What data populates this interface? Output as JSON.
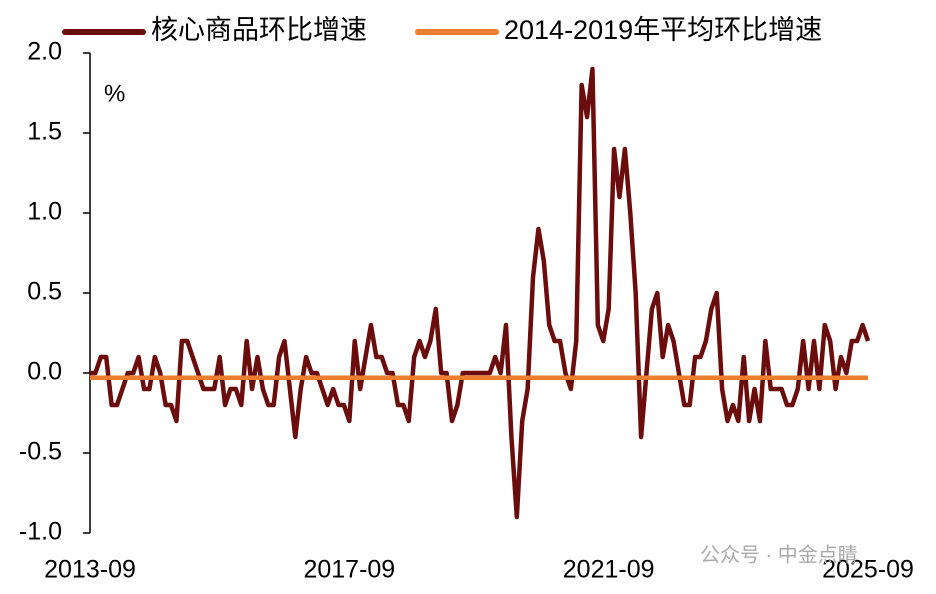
{
  "chart_data": {
    "type": "line",
    "categories": [
      "2013-09",
      null,
      null,
      null,
      null,
      null,
      null,
      null,
      null,
      null,
      null,
      null,
      null,
      null,
      null,
      null,
      null,
      null,
      null,
      null,
      null,
      null,
      null,
      null,
      null,
      null,
      null,
      null,
      null,
      null,
      null,
      null,
      null,
      null,
      null,
      null,
      null,
      null,
      null,
      null,
      null,
      null,
      null,
      null,
      null,
      null,
      null,
      null,
      "2017-09",
      null,
      null,
      null,
      null,
      null,
      null,
      null,
      null,
      null,
      null,
      null,
      null,
      null,
      null,
      null,
      null,
      null,
      null,
      null,
      null,
      null,
      null,
      null,
      null,
      null,
      null,
      null,
      null,
      null,
      null,
      null,
      null,
      null,
      null,
      null,
      null,
      null,
      null,
      null,
      null,
      null,
      null,
      null,
      null,
      null,
      null,
      null,
      "2021-09",
      null,
      null,
      null,
      null,
      null,
      null,
      null,
      null,
      null,
      null,
      null,
      null,
      null,
      null,
      null,
      null,
      null,
      null,
      null,
      null,
      null,
      null,
      null,
      null,
      null,
      null,
      null,
      null,
      null,
      null,
      null,
      null,
      null,
      null,
      null,
      null,
      null,
      null,
      null,
      null,
      null,
      null,
      null,
      null,
      null,
      null,
      null,
      "2025-09"
    ],
    "series": [
      {
        "name": "核心商品环比增速",
        "color": "#6b0d0d",
        "values": [
          0,
          0,
          0.1,
          0.1,
          -0.2,
          -0.2,
          -0.1,
          0,
          0,
          0.1,
          -0.1,
          -0.1,
          0.1,
          0,
          -0.2,
          -0.2,
          -0.3,
          0.2,
          0.2,
          0.1,
          0,
          -0.1,
          -0.1,
          -0.1,
          0.1,
          -0.2,
          -0.1,
          -0.1,
          -0.2,
          0.2,
          -0.1,
          0.1,
          -0.1,
          -0.2,
          -0.2,
          0.1,
          0.2,
          -0.1,
          -0.4,
          -0.1,
          0.1,
          0,
          0,
          -0.1,
          -0.2,
          -0.1,
          -0.2,
          -0.2,
          -0.3,
          0.2,
          -0.1,
          0.1,
          0.3,
          0.1,
          0.1,
          0,
          0,
          -0.2,
          -0.2,
          -0.3,
          0.1,
          0.2,
          0.1,
          0.2,
          0.4,
          0,
          0,
          -0.3,
          -0.2,
          0,
          0,
          0,
          0,
          0,
          0,
          0.1,
          0,
          0.3,
          -0.4,
          -0.9,
          -0.3,
          -0.1,
          0.6,
          0.9,
          0.7,
          0.3,
          0.2,
          0.2,
          0,
          -0.1,
          0.2,
          1.8,
          1.6,
          1.9,
          0.3,
          0.2,
          0.4,
          1.4,
          1.1,
          1.4,
          1.0,
          0.5,
          -0.4,
          0,
          0.4,
          0.5,
          0.1,
          0.3,
          0.2,
          0,
          -0.2,
          -0.2,
          0.1,
          0.1,
          0.2,
          0.4,
          0.5,
          -0.1,
          -0.3,
          -0.2,
          -0.3,
          0.1,
          -0.3,
          -0.1,
          -0.3,
          0.2,
          -0.1,
          -0.1,
          -0.1,
          -0.2,
          -0.2,
          -0.1,
          0.2,
          -0.1,
          0.2,
          -0.1,
          0.3,
          0.2,
          -0.1,
          0.1,
          0,
          0.2,
          0.2,
          0.3,
          0.2
        ]
      },
      {
        "name": "2014-2019年平均环比增速",
        "color": "#ed7d31",
        "values": [
          -0.03,
          -0.03,
          -0.03,
          -0.03,
          -0.03,
          -0.03,
          -0.03,
          -0.03,
          -0.03,
          -0.03,
          -0.03,
          -0.03,
          -0.03,
          -0.03,
          -0.03,
          -0.03,
          -0.03,
          -0.03,
          -0.03,
          -0.03,
          -0.03,
          -0.03,
          -0.03,
          -0.03,
          -0.03,
          -0.03,
          -0.03,
          -0.03,
          -0.03,
          -0.03,
          -0.03,
          -0.03,
          -0.03,
          -0.03,
          -0.03,
          -0.03,
          -0.03,
          -0.03,
          -0.03,
          -0.03,
          -0.03,
          -0.03,
          -0.03,
          -0.03,
          -0.03,
          -0.03,
          -0.03,
          -0.03,
          -0.03,
          -0.03,
          -0.03,
          -0.03,
          -0.03,
          -0.03,
          -0.03,
          -0.03,
          -0.03,
          -0.03,
          -0.03,
          -0.03,
          -0.03,
          -0.03,
          -0.03,
          -0.03,
          -0.03,
          -0.03,
          -0.03,
          -0.03,
          -0.03,
          -0.03,
          -0.03,
          -0.03,
          -0.03,
          -0.03,
          -0.03,
          -0.03,
          -0.03,
          -0.03,
          -0.03,
          -0.03,
          -0.03,
          -0.03,
          -0.03,
          -0.03,
          -0.03,
          -0.03,
          -0.03,
          -0.03,
          -0.03,
          -0.03,
          -0.03,
          -0.03,
          -0.03,
          -0.03,
          -0.03,
          -0.03,
          -0.03,
          -0.03,
          -0.03,
          -0.03,
          -0.03,
          -0.03,
          -0.03,
          -0.03,
          -0.03,
          -0.03,
          -0.03,
          -0.03,
          -0.03,
          -0.03,
          -0.03,
          -0.03,
          -0.03,
          -0.03,
          -0.03,
          -0.03,
          -0.03,
          -0.03,
          -0.03,
          -0.03,
          -0.03,
          -0.03,
          -0.03,
          -0.03,
          -0.03,
          -0.03,
          -0.03,
          -0.03,
          -0.03,
          -0.03,
          -0.03,
          -0.03,
          -0.03,
          -0.03,
          -0.03,
          -0.03,
          -0.03,
          -0.03,
          -0.03,
          -0.03,
          -0.03,
          -0.03,
          -0.03,
          -0.03,
          -0.03
        ]
      }
    ],
    "ylim": [
      -1.0,
      2.0
    ],
    "yticks": [
      {
        "value": 2.0,
        "label": "2.0"
      },
      1.5,
      {
        "value": 1.0,
        "label": "1.0"
      },
      0.5,
      {
        "value": 0.0,
        "label": "0.0"
      },
      -0.5,
      {
        "value": -1.0,
        "label": "-1.0"
      }
    ],
    "y_unit": "%",
    "watermark": "公众号 · 中金点睛",
    "legend": "top"
  }
}
